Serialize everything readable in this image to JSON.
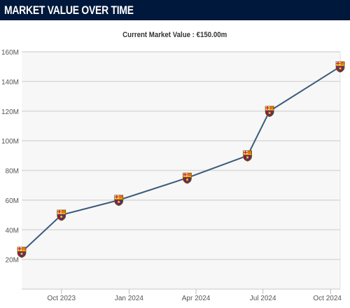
{
  "header": {
    "title": "MARKET VALUE OVER TIME"
  },
  "subtitle": "Current Market Value : €150.00m",
  "colors": {
    "header_bg": "#00183b",
    "line": "#3d5a7d",
    "plot_bg": "#f7f7f7",
    "grid": "#d9d9d9",
    "crest_blue": "#1f3a8a",
    "crest_red": "#a50044",
    "crest_gold": "#edbb00"
  },
  "point_icon": "fc-barcelona-crest-icon",
  "chart_data": {
    "type": "line",
    "title": "",
    "xlabel": "",
    "ylabel": "",
    "ylim": [
      0,
      160
    ],
    "y_unit": "M",
    "grid": true,
    "x_range": [
      "2023-08-08",
      "2024-10-14"
    ],
    "x_ticks": [
      {
        "date": "2023-10-01",
        "label": "Oct 2023"
      },
      {
        "date": "2024-01-01",
        "label": "Jan 2024"
      },
      {
        "date": "2024-04-01",
        "label": "Apr 2024"
      },
      {
        "date": "2024-07-01",
        "label": "Jul 2024"
      },
      {
        "date": "2024-10-01",
        "label": "Oct 2024"
      }
    ],
    "y_ticks": [
      {
        "value": 20,
        "label": "20M"
      },
      {
        "value": 40,
        "label": "40M"
      },
      {
        "value": 60,
        "label": "60M"
      },
      {
        "value": 80,
        "label": "80M"
      },
      {
        "value": 100,
        "label": "100M"
      },
      {
        "value": 120,
        "label": "120M"
      },
      {
        "value": 140,
        "label": "140M"
      },
      {
        "value": 160,
        "label": "160M"
      }
    ],
    "series": [
      {
        "x": [
          "2023-08-08",
          "2023-10-01",
          "2023-12-18",
          "2024-03-20",
          "2024-06-10",
          "2024-07-10",
          "2024-10-14"
        ],
        "values": [
          25,
          50,
          60,
          75,
          90,
          120,
          150
        ]
      }
    ]
  }
}
